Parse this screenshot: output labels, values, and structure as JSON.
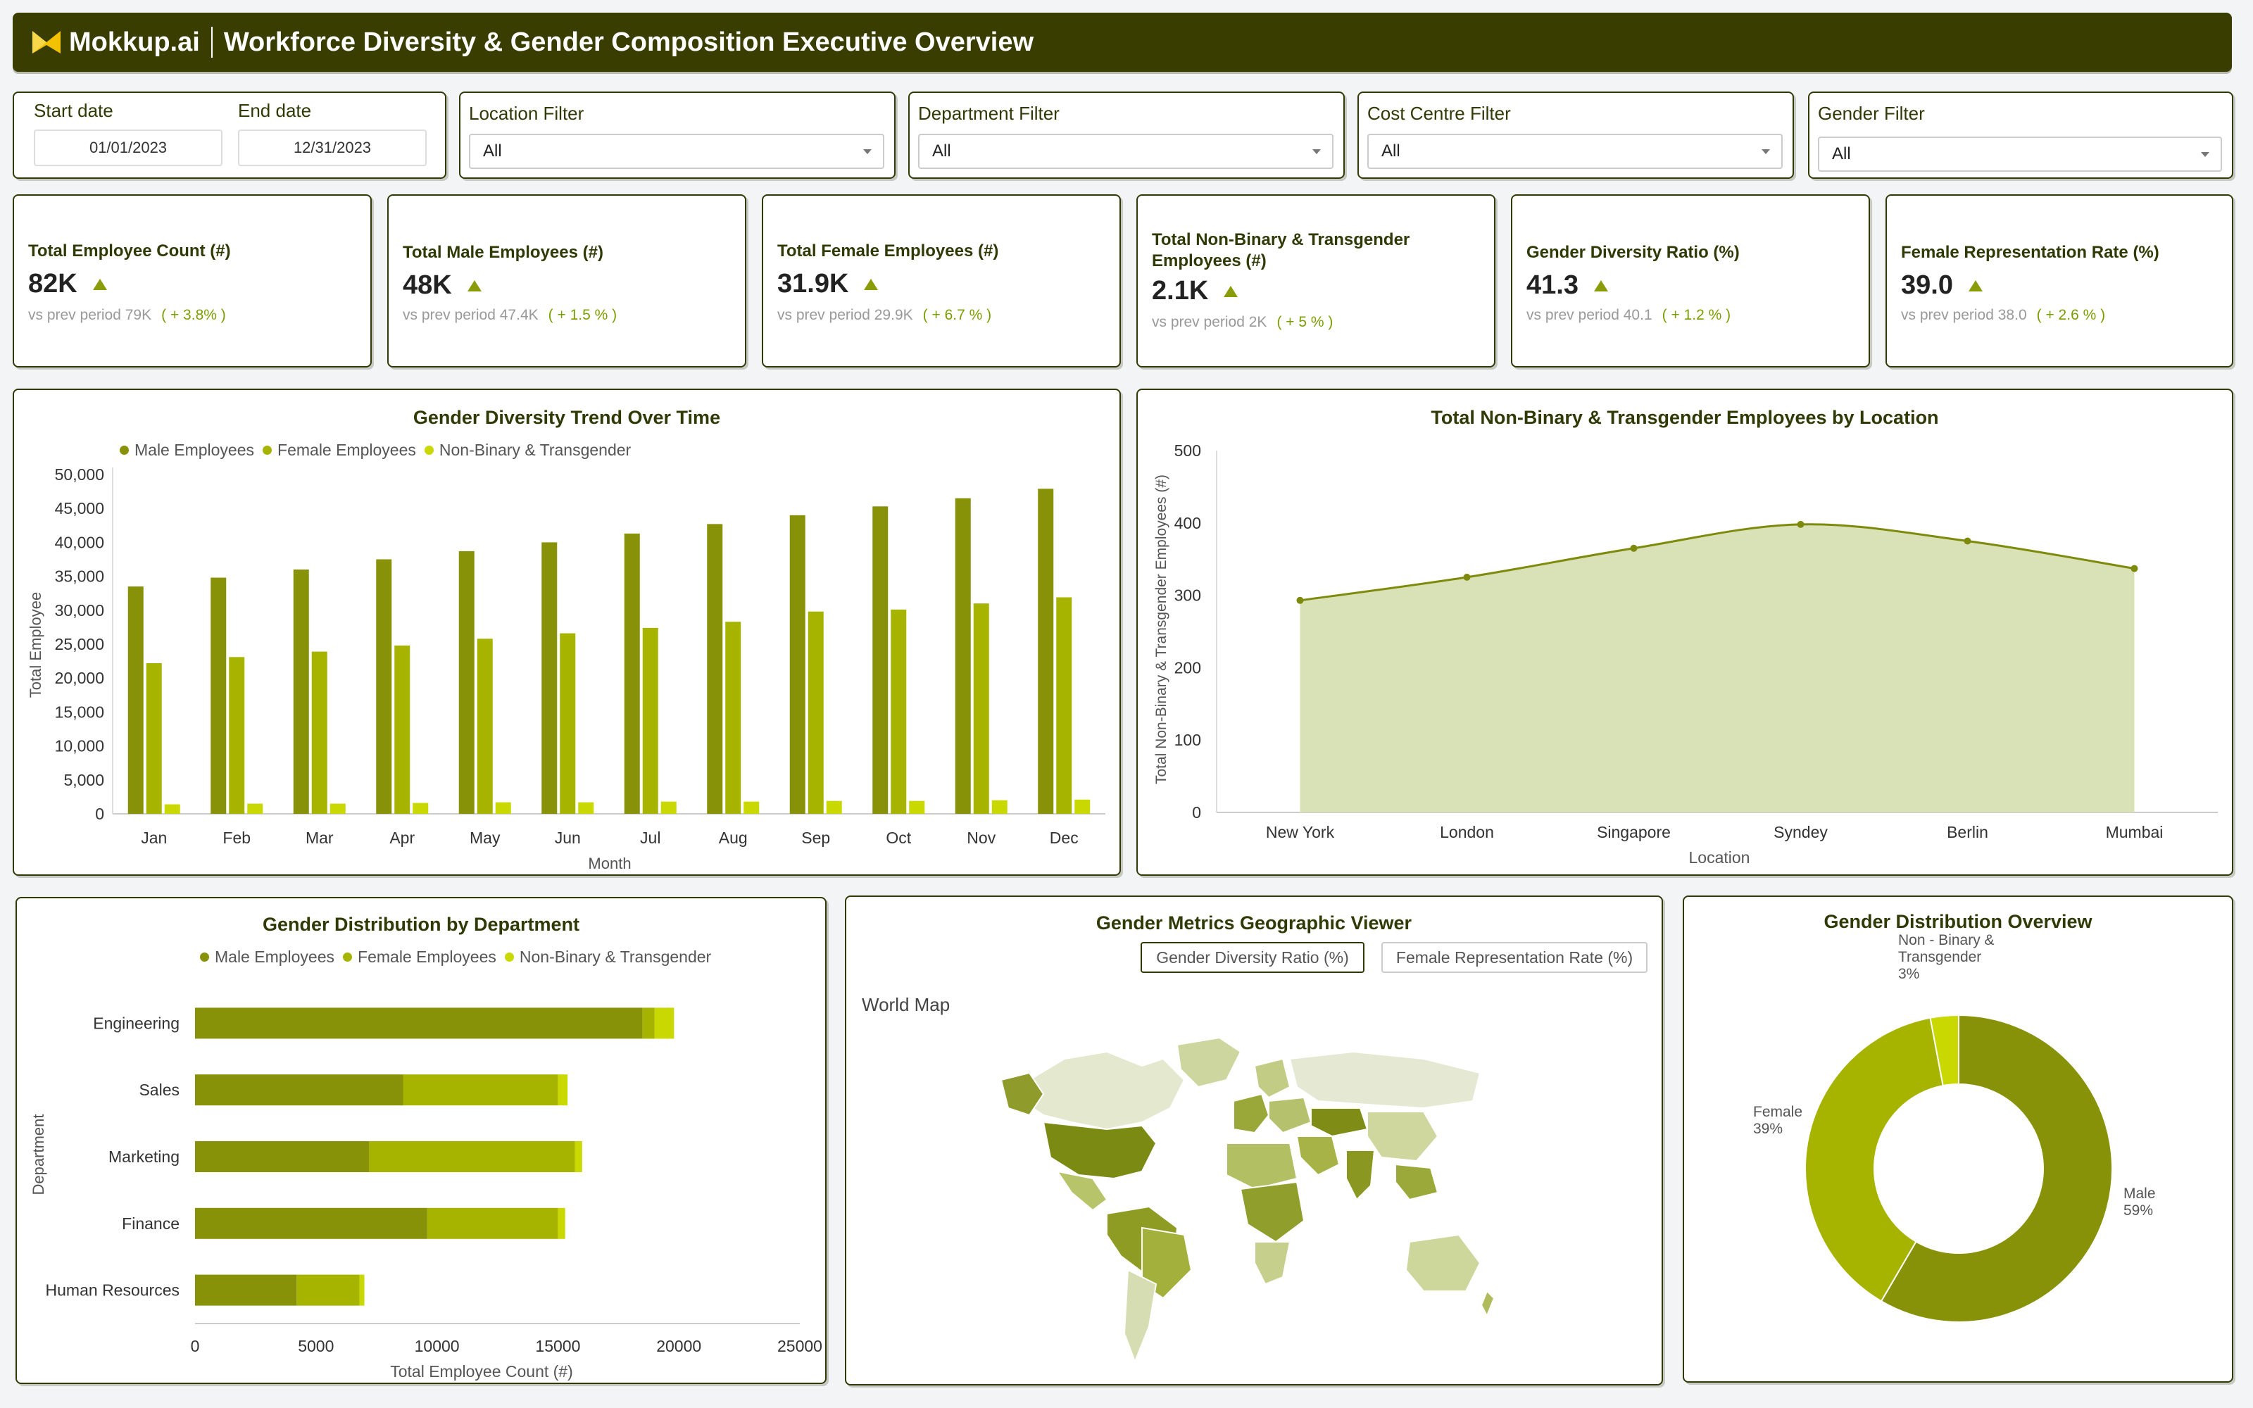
{
  "header": {
    "logo_text": "Mokkup.ai",
    "title": "Workforce Diversity & Gender Composition Executive Overview"
  },
  "filters": {
    "start_label": "Start date",
    "start_value": "01/01/2023",
    "end_label": "End date",
    "end_value": "12/31/2023",
    "selects": [
      {
        "label": "Location Filter",
        "value": "All"
      },
      {
        "label": "Department Filter",
        "value": "All"
      },
      {
        "label": "Cost Centre Filter",
        "value": "All"
      },
      {
        "label": "Gender Filter",
        "value": "All"
      }
    ]
  },
  "kpis": [
    {
      "title": "Total Employee Count (#)",
      "value": "82K",
      "prev_label": "vs prev period",
      "prev_value": "79K",
      "change": "( + 3.8% )"
    },
    {
      "title": "Total Male Employees (#)",
      "value": "48K",
      "prev_label": "vs prev period",
      "prev_value": "47.4K",
      "change": "( + 1.5 % )"
    },
    {
      "title": "Total Female Employees (#)",
      "value": "31.9K",
      "prev_label": "vs prev period",
      "prev_value": "29.9K",
      "change": "( + 6.7 % )"
    },
    {
      "title": "Total Non-Binary & Transgender Employees (#)",
      "value": "2.1K",
      "prev_label": "vs prev period",
      "prev_value": "2K",
      "change": "( + 5 % )"
    },
    {
      "title": "Gender Diversity Ratio (%)",
      "value": "41.3",
      "prev_label": "vs prev period",
      "prev_value": "40.1",
      "change": "( + 1.2 % )"
    },
    {
      "title": "Female Representation Rate (%)",
      "value": "39.0",
      "prev_label": "vs prev period",
      "prev_value": "38.0",
      "change": "( + 2.6 % )"
    }
  ],
  "colors": {
    "male": "#879209",
    "female": "#a6b400",
    "nonbinary": "#c8d800",
    "area": "#d9e2b6",
    "line": "#7e8a0c",
    "dark": "#2f3a06"
  },
  "legend": {
    "male": "Male Employees",
    "female": "Female Employees",
    "nonbinary": "Non-Binary & Transgender"
  },
  "chart_data": [
    {
      "id": "trend",
      "type": "bar",
      "title": "Gender Diversity Trend Over Time",
      "xlabel": "Month",
      "ylabel": "Total Employee",
      "ylim": [
        0,
        50000
      ],
      "yticks": [
        "0",
        "5,000",
        "10,000",
        "15,000",
        "20,000",
        "25,000",
        "30,000",
        "35,000",
        "40,000",
        "45,000",
        "50,000"
      ],
      "categories": [
        "Jan",
        "Feb",
        "Mar",
        "Apr",
        "May",
        "Jun",
        "Jul",
        "Aug",
        "Sep",
        "Oct",
        "Nov",
        "Dec"
      ],
      "series": [
        {
          "name": "Male Employees",
          "values": [
            33500,
            34800,
            36000,
            37500,
            38700,
            40000,
            41300,
            42700,
            44000,
            45300,
            46500,
            47900
          ]
        },
        {
          "name": "Female Employees",
          "values": [
            22200,
            23100,
            23900,
            24800,
            25800,
            26600,
            27400,
            28300,
            29800,
            30100,
            31000,
            31900
          ]
        },
        {
          "name": "Non-Binary & Transgender",
          "values": [
            1400,
            1500,
            1500,
            1600,
            1700,
            1700,
            1800,
            1800,
            1900,
            1900,
            2000,
            2100
          ]
        }
      ],
      "legend_position": "top-left",
      "grid": false
    },
    {
      "id": "location",
      "type": "area",
      "title": "Total Non-Binary & Transgender Employees by Location",
      "xlabel": "Location",
      "ylabel": "Total Non-Binary & Transgender Employees (#)",
      "ylim": [
        0,
        500
      ],
      "yticks": [
        "0",
        "100",
        "200",
        "300",
        "400",
        "500"
      ],
      "categories": [
        "New York",
        "London",
        "Singapore",
        "Syndey",
        "Berlin",
        "Mumbai"
      ],
      "values": [
        293,
        325,
        365,
        398,
        375,
        337
      ],
      "grid": false
    },
    {
      "id": "department",
      "type": "bar",
      "orientation": "horizontal",
      "stacked": true,
      "title": "Gender Distribution by Department",
      "xlabel": "Total Employee Count (#)",
      "ylabel": "Department",
      "xlim": [
        0,
        25000
      ],
      "xticks": [
        "0",
        "5000",
        "10000",
        "15000",
        "20000",
        "25000"
      ],
      "categories": [
        "Engineering",
        "Sales",
        "Marketing",
        "Finance",
        "Human Resources"
      ],
      "series": [
        {
          "name": "Male Employees",
          "values": [
            18500,
            8600,
            7200,
            9600,
            4200
          ]
        },
        {
          "name": "Female Employees",
          "values": [
            500,
            6400,
            8500,
            5400,
            2600
          ]
        },
        {
          "name": "Non-Binary & Transgender",
          "values": [
            800,
            400,
            300,
            300,
            200
          ]
        }
      ],
      "legend_position": "top-center"
    },
    {
      "id": "overview",
      "type": "pie",
      "title": "Gender Distribution Overview",
      "slices": [
        {
          "label": "Male",
          "pct_label": "59%",
          "value": 59
        },
        {
          "label": "Female",
          "pct_label": "39%",
          "value": 39
        },
        {
          "label": "Non - Binary & Transgender",
          "pct_label": "3%",
          "value": 3
        }
      ]
    }
  ],
  "map": {
    "title": "Gender Metrics Geographic Viewer",
    "label": "World Map",
    "tabs": [
      "Gender Diversity Ratio (%)",
      "Female Representation Rate (%)"
    ],
    "active_tab": 0
  }
}
